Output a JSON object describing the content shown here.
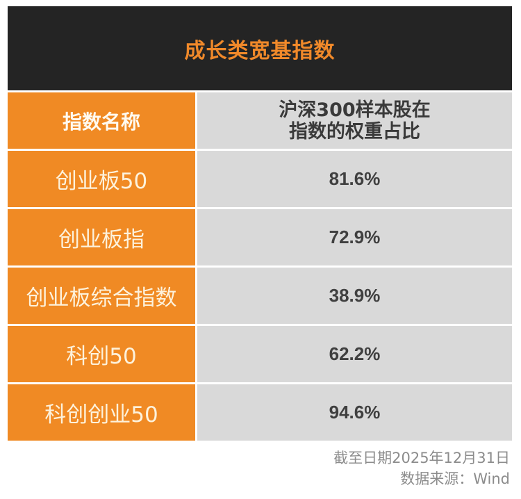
{
  "title": "成长类宽基指数",
  "header": {
    "col1": "指数名称",
    "col2_line1": "沪深300样本股在",
    "col2_line2": "指数的权重占比"
  },
  "rows": [
    {
      "name": "创业板50",
      "value": "81.6%"
    },
    {
      "name": "创业板指",
      "value": "72.9%"
    },
    {
      "name": "创业板综合指数",
      "value": "38.9%"
    },
    {
      "name": "科创50",
      "value": "62.2%"
    },
    {
      "name": "科创创业50",
      "value": "94.6%"
    }
  ],
  "footer": {
    "date_note": "截至日期2025年12月31日",
    "source_note": "数据来源：Wind"
  },
  "colors": {
    "title_bg": "#242424",
    "title_text": "#f0892a",
    "accent_orange": "#f08a24",
    "value_bg": "#d9d9d9",
    "value_text": "#404040",
    "footer_text": "#8c8c8c"
  }
}
